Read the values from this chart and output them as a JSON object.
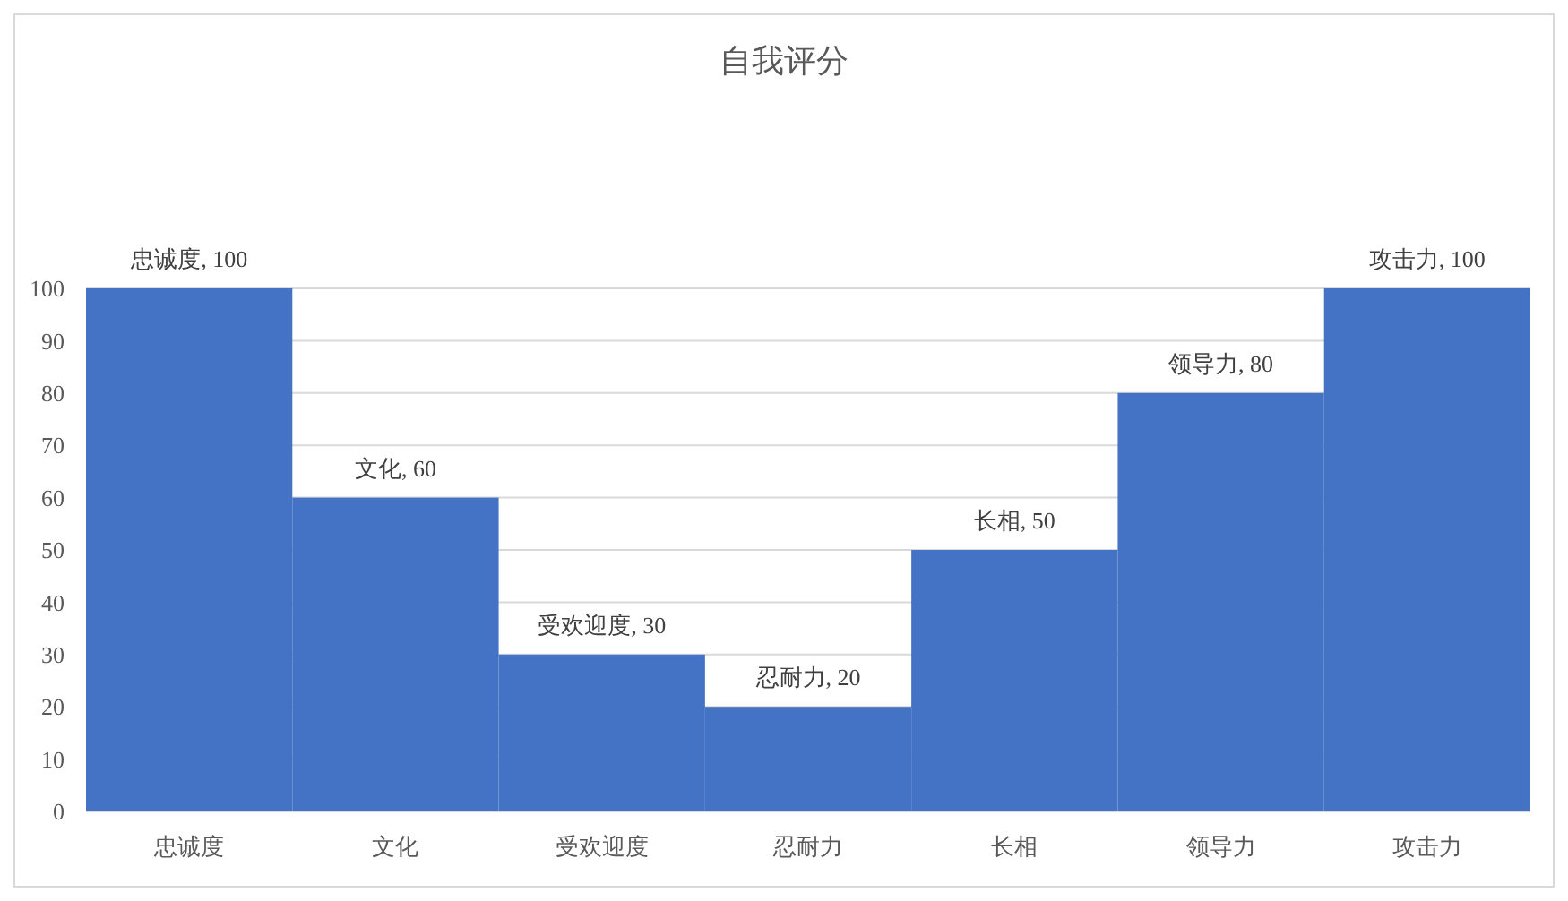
{
  "chart_data": {
    "type": "bar",
    "title": "自我评分",
    "categories": [
      "忠诚度",
      "文化",
      "受欢迎度",
      "忍耐力",
      "长相",
      "领导力",
      "攻击力"
    ],
    "values": [
      100,
      60,
      30,
      20,
      50,
      80,
      100
    ],
    "color": "#4472c4",
    "value_labels": [
      "忠诚度, 100",
      "文化, 60",
      "受欢迎度, 30",
      "忍耐力, 20",
      "长相, 50",
      "领导力, 80",
      "攻击力, 100"
    ],
    "ylim": [
      0,
      100
    ],
    "yticks": [
      0,
      10,
      20,
      30,
      40,
      50,
      60,
      70,
      80,
      90,
      100
    ],
    "grid": "y"
  }
}
